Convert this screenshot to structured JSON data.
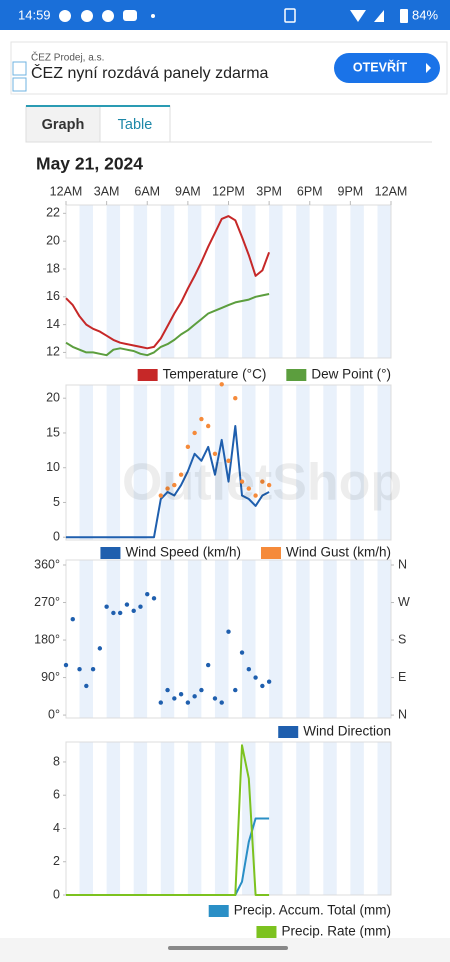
{
  "status_bar": {
    "time": "14:59",
    "battery": "84%"
  },
  "ad": {
    "advertiser": "ČEZ Prodej, a.s.",
    "headline": "ČEZ nyní rozdává panely zdarma",
    "button": "OTEVŘÍT"
  },
  "tabs": [
    "Graph",
    "Table"
  ],
  "date": "May 21, 2024",
  "watermark": "OutletShop",
  "chart_data": [
    {
      "type": "line",
      "x": [
        0,
        0.5,
        1,
        1.5,
        2,
        2.5,
        3,
        3.5,
        4,
        4.5,
        5,
        5.5,
        6,
        6.5,
        7,
        7.5,
        8,
        8.5,
        9,
        9.5,
        10,
        10.5,
        11,
        11.5,
        12,
        12.5,
        13,
        13.5,
        14,
        14.5,
        15
      ],
      "xlim": [
        0,
        24
      ],
      "xticks": [
        {
          "value": 0,
          "label": "12AM"
        },
        {
          "value": 3,
          "label": "3AM"
        },
        {
          "value": 6,
          "label": "6AM"
        },
        {
          "value": 9,
          "label": "9AM"
        },
        {
          "value": 12,
          "label": "12PM"
        },
        {
          "value": 15,
          "label": "3PM"
        },
        {
          "value": 18,
          "label": "6PM"
        },
        {
          "value": 21,
          "label": "9PM"
        },
        {
          "value": 24,
          "label": "12AM"
        }
      ],
      "ylim": [
        11.6,
        22.6
      ],
      "yticks": [
        12,
        14,
        16,
        18,
        20,
        22
      ],
      "legend": "bottom-right",
      "series": [
        {
          "name": "Temperature (°C)",
          "color": "#c62828",
          "values": [
            15.9,
            15.4,
            14.6,
            14.0,
            13.7,
            13.5,
            13.2,
            12.9,
            12.7,
            12.6,
            12.5,
            12.4,
            12.3,
            12.4,
            13.0,
            13.9,
            14.8,
            15.6,
            16.6,
            17.5,
            18.5,
            19.6,
            20.6,
            21.6,
            21.8,
            21.5,
            20.3,
            19.0,
            17.5,
            17.9,
            19.2
          ]
        },
        {
          "name": "Dew Point (°)",
          "color": "#5c9e3e",
          "values": [
            12.7,
            12.4,
            12.2,
            12.0,
            12.0,
            11.9,
            11.8,
            12.2,
            12.3,
            12.2,
            12.1,
            11.9,
            11.8,
            12.0,
            12.4,
            12.6,
            12.9,
            13.3,
            13.6,
            14.0,
            14.4,
            14.8,
            15.0,
            15.2,
            15.4,
            15.6,
            15.7,
            15.8,
            16.0,
            16.1,
            16.2
          ]
        }
      ]
    },
    {
      "type": "line",
      "x": [
        0,
        0.5,
        1,
        1.5,
        2,
        2.5,
        3,
        3.5,
        4,
        4.5,
        5,
        5.5,
        6,
        6.5,
        7,
        7.5,
        8,
        8.5,
        9,
        9.5,
        10,
        10.5,
        11,
        11.5,
        12,
        12.5,
        13,
        13.5,
        14,
        14.5,
        15
      ],
      "xlim": [
        0,
        24
      ],
      "ylim": [
        -0.4,
        21.9
      ],
      "yticks": [
        0,
        5,
        10,
        15,
        20
      ],
      "legend": "bottom-right",
      "series": [
        {
          "name": "Wind Speed (km/h)",
          "type": "line",
          "color": "#1f5fae",
          "values": [
            0,
            0,
            0,
            0,
            0,
            0,
            0,
            0,
            0,
            0,
            0,
            0,
            0,
            0,
            5.5,
            6.5,
            6.0,
            7.5,
            9.5,
            12,
            11,
            13,
            9,
            14,
            8,
            16,
            6,
            5.5,
            4.5,
            6,
            6.5
          ]
        },
        {
          "name": "Wind Gust (km/h)",
          "type": "scatter",
          "color": "#f58a3a",
          "values": [
            null,
            null,
            null,
            null,
            null,
            null,
            null,
            null,
            null,
            null,
            null,
            null,
            null,
            null,
            6,
            7,
            7.5,
            9,
            13,
            15,
            17,
            16,
            12,
            22,
            11,
            20,
            8,
            7,
            6,
            8,
            7.5
          ]
        }
      ]
    },
    {
      "type": "scatter",
      "x": [
        0,
        0.5,
        1,
        1.5,
        2,
        2.5,
        3,
        3.5,
        4,
        4.5,
        5,
        5.5,
        6,
        6.5,
        7,
        7.5,
        8,
        8.5,
        9,
        9.5,
        10,
        10.5,
        11,
        11.5,
        12,
        12.5,
        13,
        13.5,
        14,
        14.5,
        15
      ],
      "xlim": [
        0,
        24
      ],
      "ylim": [
        -7,
        372
      ],
      "yticks": [
        {
          "value": 0,
          "label": "0°"
        },
        {
          "value": 90,
          "label": "90°"
        },
        {
          "value": 180,
          "label": "180°"
        },
        {
          "value": 270,
          "label": "270°"
        },
        {
          "value": 360,
          "label": "360°"
        }
      ],
      "y2lim": [
        -7,
        372
      ],
      "y2ticks": [
        {
          "value": 0,
          "label": "N"
        },
        {
          "value": 90,
          "label": "E"
        },
        {
          "value": 180,
          "label": "S"
        },
        {
          "value": 270,
          "label": "W"
        },
        {
          "value": 360,
          "label": "N"
        }
      ],
      "legend": "bottom-right",
      "series": [
        {
          "name": "Wind Direction",
          "color": "#1f5fae",
          "values": [
            120,
            230,
            110,
            70,
            110,
            160,
            260,
            245,
            245,
            265,
            250,
            260,
            290,
            280,
            30,
            60,
            40,
            50,
            30,
            45,
            60,
            120,
            40,
            30,
            200,
            60,
            150,
            110,
            90,
            70,
            80
          ]
        }
      ]
    },
    {
      "type": "line",
      "x": [
        0,
        0.5,
        1,
        1.5,
        2,
        2.5,
        3,
        3.5,
        4,
        4.5,
        5,
        5.5,
        6,
        6.5,
        7,
        7.5,
        8,
        8.5,
        9,
        9.5,
        10,
        10.5,
        11,
        11.5,
        12,
        12.5,
        13,
        13.5,
        14,
        14.5,
        15
      ],
      "xlim": [
        0,
        24
      ],
      "ylim": [
        0,
        9.2
      ],
      "yticks": [
        0,
        2,
        4,
        6,
        8
      ],
      "legend": "bottom-right",
      "series": [
        {
          "name": "Precip. Accum. Total (mm)",
          "color": "#2a8fc6",
          "values": [
            0,
            0,
            0,
            0,
            0,
            0,
            0,
            0,
            0,
            0,
            0,
            0,
            0,
            0,
            0,
            0,
            0,
            0,
            0,
            0,
            0,
            0,
            0,
            0,
            0,
            0,
            0.8,
            3.2,
            4.6,
            4.6,
            4.6
          ]
        },
        {
          "name": "Precip. Rate (mm)",
          "color": "#7cc21f",
          "values": [
            0,
            0,
            0,
            0,
            0,
            0,
            0,
            0,
            0,
            0,
            0,
            0,
            0,
            0,
            0,
            0,
            0,
            0,
            0,
            0,
            0,
            0,
            0,
            0,
            0,
            0,
            9.0,
            7.0,
            0,
            0,
            0
          ]
        }
      ]
    }
  ]
}
